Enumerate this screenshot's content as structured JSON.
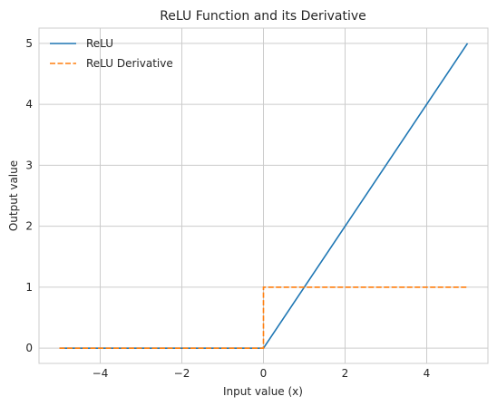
{
  "chart_data": {
    "type": "line",
    "title": "ReLU Function and its Derivative",
    "xlabel": "Input value (x)",
    "ylabel": "Output value",
    "xlim": [
      -5.5,
      5.5
    ],
    "ylim": [
      -0.25,
      5.25
    ],
    "xticks": [
      -4,
      -2,
      0,
      2,
      4
    ],
    "xtick_labels": [
      "−4",
      "−2",
      "0",
      "2",
      "4"
    ],
    "yticks": [
      0,
      1,
      2,
      3,
      4,
      5
    ],
    "ytick_labels": [
      "0",
      "1",
      "2",
      "3",
      "4",
      "5"
    ],
    "grid": true,
    "legend_position": "top-left",
    "series": [
      {
        "name": "ReLU",
        "color": "#1f77b4",
        "style": "solid",
        "x": [
          -5,
          0,
          5
        ],
        "y": [
          0,
          0,
          5
        ]
      },
      {
        "name": "ReLU Derivative",
        "color": "#ff7f0e",
        "style": "dashed",
        "x": [
          -5,
          0,
          0,
          5
        ],
        "y": [
          0,
          0,
          1,
          1
        ]
      }
    ]
  }
}
